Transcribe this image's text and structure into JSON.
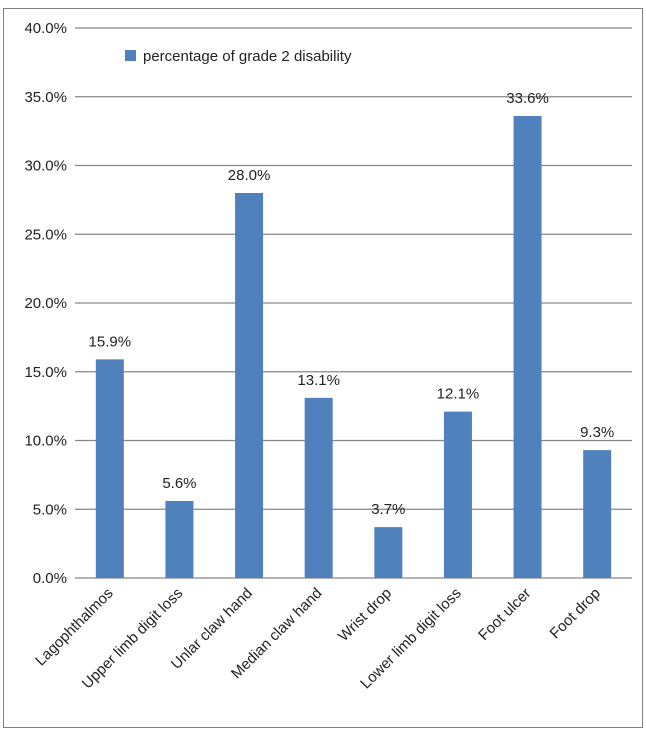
{
  "chart_data": {
    "type": "bar",
    "categories": [
      "Lagophthalmos",
      "Upper limb digit loss",
      "Unlar claw hand",
      "Median claw hand",
      "Wrist drop",
      "Lower limb digit loss",
      "Foot ulcer",
      "Foot drop"
    ],
    "series": [
      {
        "name": "percentage of grade 2 disability",
        "values": [
          15.9,
          5.6,
          28.0,
          13.1,
          3.7,
          12.1,
          33.6,
          9.3
        ],
        "color": "#4f81bd"
      }
    ],
    "data_labels": [
      "15.9%",
      "5.6%",
      "28.0%",
      "13.1%",
      "3.7%",
      "12.1%",
      "33.6%",
      "9.3%"
    ],
    "ylim": [
      0,
      40
    ],
    "yticks": [
      0,
      5,
      10,
      15,
      20,
      25,
      30,
      35,
      40
    ],
    "ytick_labels": [
      "0.0%",
      "5.0%",
      "10.0%",
      "15.0%",
      "20.0%",
      "25.0%",
      "30.0%",
      "35.0%",
      "40.0%"
    ],
    "grid": true,
    "legend_position": "top-left",
    "gridline_color": "#868686",
    "label_color": "#222222"
  }
}
